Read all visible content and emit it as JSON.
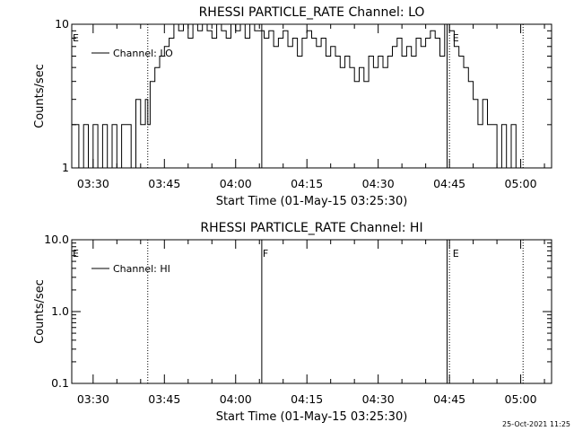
{
  "chart_data": [
    {
      "type": "line",
      "title": "RHESSI PARTICLE_RATE Channel: LO",
      "xlabel": "Start Time (01-May-15 03:25:30)",
      "ylabel": "Counts/sec",
      "yscale": "log",
      "ylim": [
        1,
        10
      ],
      "y_ticks": [
        1,
        10
      ],
      "y_tick_labels": [
        "1",
        "10"
      ],
      "xlim": [
        "03:25:30",
        "05:06:30"
      ],
      "x_tick_labels": [
        "03:30",
        "03:45",
        "04:00",
        "04:15",
        "04:30",
        "04:45",
        "05:00"
      ],
      "legend": {
        "label": "Channel: LO",
        "placement": "top-left"
      },
      "series": [
        {
          "name": "Channel: LO",
          "color": "#000000",
          "x": [
            "03:25:30",
            "03:26:00",
            "03:27:00",
            "03:28:00",
            "03:29:00",
            "03:30:00",
            "03:31:00",
            "03:32:00",
            "03:33:00",
            "03:34:00",
            "03:35:00",
            "03:36:00",
            "03:37:00",
            "03:38:00",
            "03:39:00",
            "03:40:00",
            "03:41:00",
            "03:41:30",
            "03:42:00",
            "03:43:00",
            "03:44:00",
            "03:45:00",
            "03:46:00",
            "03:47:00",
            "03:48:00",
            "03:49:00",
            "03:50:00",
            "03:51:00",
            "03:52:00",
            "03:53:00",
            "03:54:00",
            "03:55:00",
            "03:56:00",
            "03:57:00",
            "03:58:00",
            "03:59:00",
            "04:00:00",
            "04:01:00",
            "04:02:00",
            "04:03:00",
            "04:04:00",
            "04:05:00",
            "04:06:00",
            "04:07:00",
            "04:08:00",
            "04:09:00",
            "04:10:00",
            "04:11:00",
            "04:12:00",
            "04:13:00",
            "04:14:00",
            "04:15:00",
            "04:16:00",
            "04:17:00",
            "04:18:00",
            "04:19:00",
            "04:20:00",
            "04:21:00",
            "04:22:00",
            "04:23:00",
            "04:24:00",
            "04:25:00",
            "04:26:00",
            "04:27:00",
            "04:28:00",
            "04:29:00",
            "04:30:00",
            "04:31:00",
            "04:32:00",
            "04:33:00",
            "04:34:00",
            "04:35:00",
            "04:36:00",
            "04:37:00",
            "04:38:00",
            "04:39:00",
            "04:40:00",
            "04:41:00",
            "04:42:00",
            "04:43:00",
            "04:44:00",
            "04:45:00",
            "04:46:00",
            "04:47:00",
            "04:48:00",
            "04:49:00",
            "04:50:00",
            "04:51:00",
            "04:52:00",
            "04:53:00",
            "04:54:00",
            "04:55:00",
            "04:56:00",
            "04:57:00",
            "04:58:00",
            "04:59:00",
            "05:00:00"
          ],
          "y": [
            2,
            2,
            1,
            2,
            1,
            2,
            1,
            2,
            1,
            2,
            1,
            2,
            2,
            1,
            3,
            2,
            3,
            2,
            4,
            5,
            6,
            7,
            8,
            10,
            9,
            10,
            8,
            10,
            9,
            10,
            9,
            8,
            10,
            9,
            8,
            10,
            9,
            10,
            8,
            10,
            9,
            9,
            8,
            9,
            7,
            8,
            9,
            7,
            8,
            6,
            8,
            9,
            8,
            7,
            8,
            6,
            7,
            6,
            5,
            6,
            5,
            4,
            5,
            4,
            6,
            5,
            6,
            5,
            6,
            7,
            8,
            6,
            7,
            6,
            8,
            7,
            8,
            9,
            8,
            6,
            10,
            9,
            7,
            6,
            5,
            4,
            3,
            2,
            3,
            2,
            2,
            1,
            2,
            1,
            2,
            1,
            1
          ]
        }
      ],
      "flags": [
        {
          "label": "E",
          "time": "03:25:30"
        },
        {
          "label": "E",
          "time": "04:45:30"
        }
      ],
      "events": [
        {
          "time": "03:41:30",
          "style": "dotted"
        },
        {
          "time": "04:05:30",
          "style": "solid"
        },
        {
          "time": "04:44:30",
          "style": "solid"
        },
        {
          "time": "04:45:00",
          "style": "dotted"
        },
        {
          "time": "05:00:30",
          "style": "dotted"
        }
      ]
    },
    {
      "type": "line",
      "title": "RHESSI PARTICLE_RATE Channel: HI",
      "xlabel": "Start Time (01-May-15 03:25:30)",
      "ylabel": "Counts/sec",
      "yscale": "log",
      "ylim": [
        0.1,
        10
      ],
      "y_ticks": [
        0.1,
        1,
        10
      ],
      "y_tick_labels": [
        "0.1",
        "1.0",
        "10.0"
      ],
      "xlim": [
        "03:25:30",
        "05:06:30"
      ],
      "x_tick_labels": [
        "03:30",
        "03:45",
        "04:00",
        "04:15",
        "04:30",
        "04:45",
        "05:00"
      ],
      "legend": {
        "label": "Channel: HI",
        "placement": "top-left"
      },
      "series": [
        {
          "name": "Channel: HI",
          "color": "#000000",
          "x": [],
          "y": []
        }
      ],
      "flags": [
        {
          "label": "E",
          "time": "03:25:30"
        },
        {
          "label": "F",
          "time": "04:05:30"
        },
        {
          "label": "E",
          "time": "04:45:30"
        }
      ],
      "events": [
        {
          "time": "03:41:30",
          "style": "dotted"
        },
        {
          "time": "04:05:30",
          "style": "solid"
        },
        {
          "time": "04:44:30",
          "style": "solid"
        },
        {
          "time": "04:45:00",
          "style": "dotted"
        },
        {
          "time": "05:00:30",
          "style": "dotted"
        }
      ]
    }
  ],
  "footer": {
    "timestamp": "25-Oct-2021 11:25"
  }
}
